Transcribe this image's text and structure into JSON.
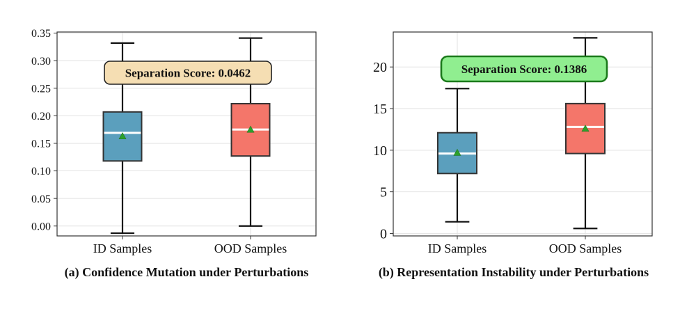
{
  "chart_data": [
    {
      "type": "box",
      "caption": "(a) Confidence Mutation under Perturbations",
      "categories": [
        "ID Samples",
        "OOD Samples"
      ],
      "ylim": [
        -0.018,
        0.352
      ],
      "yticks": [
        0.0,
        0.05,
        0.1,
        0.15,
        0.2,
        0.25,
        0.3,
        0.35
      ],
      "ytick_labels": [
        "0.00",
        "0.05",
        "0.10",
        "0.15",
        "0.20",
        "0.25",
        "0.30",
        "0.35"
      ],
      "boxes": [
        {
          "whisker_low": -0.013,
          "q1": 0.118,
          "median": 0.169,
          "q3": 0.207,
          "whisker_high": 0.332,
          "mean": 0.163,
          "color": "#5b9fbd"
        },
        {
          "whisker_low": 0.0,
          "q1": 0.127,
          "median": 0.175,
          "q3": 0.222,
          "whisker_high": 0.341,
          "mean": 0.175,
          "color": "#f4766a"
        }
      ],
      "annotation": {
        "text": "Separation Score: 0.0462",
        "face": "#f5deb3",
        "edge": "#222222"
      },
      "grid": true
    },
    {
      "type": "box",
      "caption": "(b) Representation Instability under Perturbations",
      "categories": [
        "ID Samples",
        "OOD Samples"
      ],
      "ylim": [
        -0.3,
        24.2
      ],
      "yticks": [
        0,
        5,
        10,
        15,
        20
      ],
      "ytick_labels": [
        "0",
        "5",
        "10",
        "15",
        "20"
      ],
      "boxes": [
        {
          "whisker_low": 1.4,
          "q1": 7.2,
          "median": 9.6,
          "q3": 12.1,
          "whisker_high": 17.4,
          "mean": 9.7,
          "color": "#5b9fbd"
        },
        {
          "whisker_low": 0.6,
          "q1": 9.6,
          "median": 12.8,
          "q3": 15.6,
          "whisker_high": 23.5,
          "mean": 12.6,
          "color": "#f4766a"
        }
      ],
      "annotation": {
        "text": "Separation Score: 0.1386",
        "face": "#90ee90",
        "edge": "#1b7a1b"
      },
      "grid": true
    }
  ]
}
